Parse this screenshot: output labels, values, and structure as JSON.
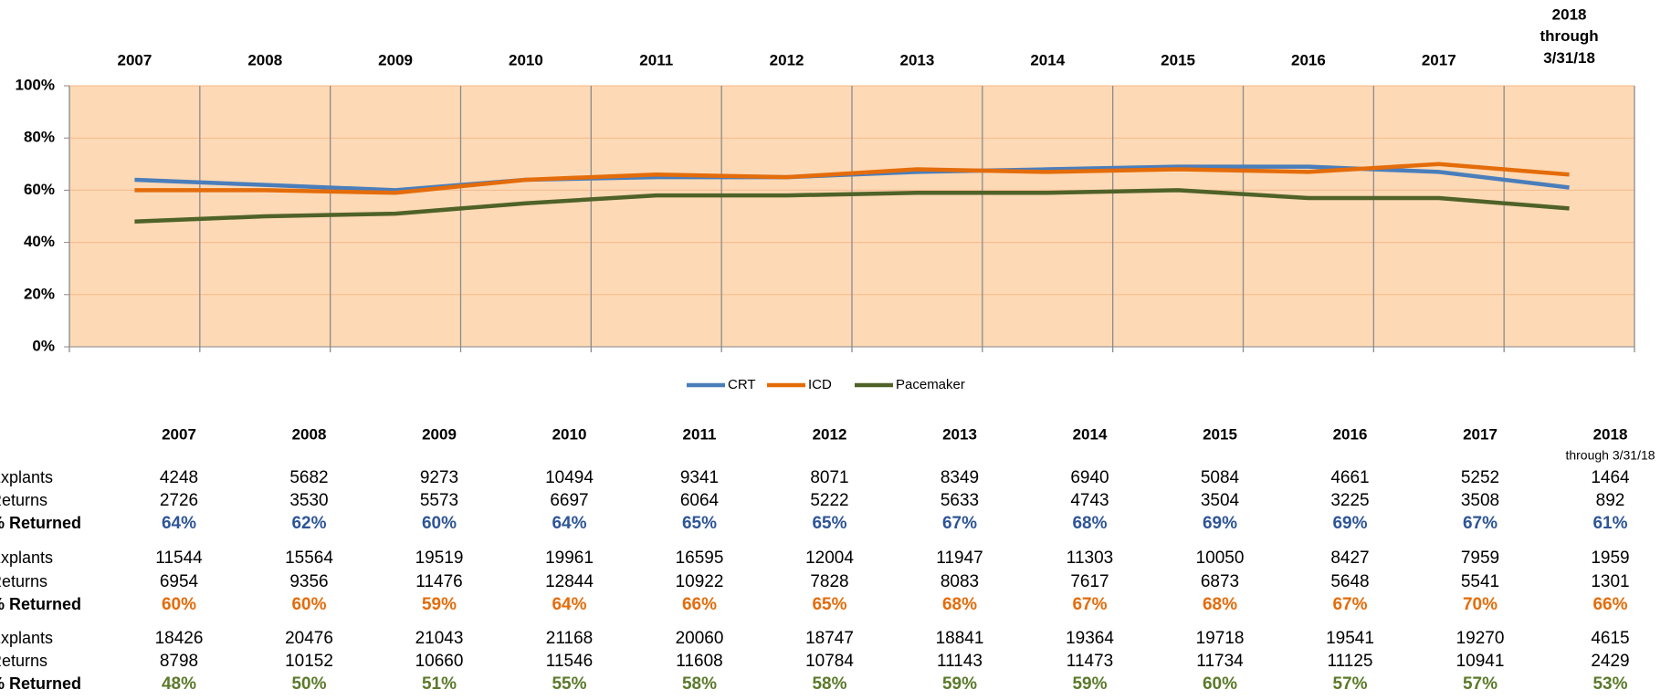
{
  "chart_data": {
    "type": "line",
    "categories": [
      "2007",
      "2008",
      "2009",
      "2010",
      "2011",
      "2012",
      "2013",
      "2014",
      "2015",
      "2016",
      "2017",
      "2018"
    ],
    "category_note": "through 3/31/18",
    "series": [
      {
        "name": "CRT",
        "color": "#4a7ebb",
        "label_color": "#2e5596",
        "values": [
          64,
          62,
          60,
          64,
          65,
          65,
          67,
          68,
          69,
          69,
          67,
          61
        ],
        "value_labels": [
          "64%",
          "62%",
          "60%",
          "64%",
          "65%",
          "65%",
          "67%",
          "68%",
          "69%",
          "69%",
          "67%",
          "61%"
        ]
      },
      {
        "name": "ICD",
        "color": "#e46c0a",
        "label_color": "#e46c0a",
        "values": [
          60,
          60,
          59,
          64,
          66,
          65,
          68,
          67,
          68,
          67,
          70,
          66
        ],
        "value_labels": [
          "60%",
          "60%",
          "59%",
          "64%",
          "66%",
          "65%",
          "68%",
          "67%",
          "68%",
          "67%",
          "70%",
          "66%"
        ]
      },
      {
        "name": "Pacemaker",
        "color": "#4f6228",
        "label_color": "#5b7a2a",
        "values": [
          48,
          50,
          51,
          55,
          58,
          58,
          59,
          59,
          60,
          57,
          57,
          53
        ],
        "value_labels": [
          "48%",
          "50%",
          "51%",
          "55%",
          "58%",
          "58%",
          "59%",
          "59%",
          "60%",
          "57%",
          "57%",
          "53%"
        ]
      }
    ],
    "ylim": [
      0,
      100
    ],
    "yticks": [
      {
        "value": 0,
        "label": "0%"
      },
      {
        "value": 20,
        "label": "20%"
      },
      {
        "value": 40,
        "label": "40%"
      },
      {
        "value": 60,
        "label": "60%"
      },
      {
        "value": 80,
        "label": "80%"
      },
      {
        "value": 100,
        "label": "100%"
      }
    ],
    "grid": true,
    "legend": "bottom",
    "plot_background": "#fdd9b5"
  },
  "table": {
    "row_labels": [
      "Explants",
      "Returns",
      "% Returned"
    ],
    "groups": [
      {
        "explants": [
          4248,
          5682,
          9273,
          10494,
          9341,
          8071,
          8349,
          6940,
          5084,
          4661,
          5252,
          1464
        ],
        "returns": [
          2726,
          3530,
          5573,
          6697,
          6064,
          5222,
          5633,
          4743,
          3504,
          3225,
          3508,
          892
        ]
      },
      {
        "explants": [
          11544,
          15564,
          19519,
          19961,
          16595,
          12004,
          11947,
          11303,
          10050,
          8427,
          7959,
          1959
        ],
        "returns": [
          6954,
          9356,
          11476,
          12844,
          10922,
          7828,
          8083,
          7617,
          6873,
          5648,
          5541,
          1301
        ]
      },
      {
        "explants": [
          18426,
          20476,
          21043,
          21168,
          20060,
          18747,
          18841,
          19364,
          19718,
          19541,
          19270,
          4615
        ],
        "returns": [
          8798,
          10152,
          10660,
          11546,
          11608,
          10784,
          11143,
          11473,
          11734,
          11125,
          10941,
          2429
        ]
      }
    ]
  }
}
